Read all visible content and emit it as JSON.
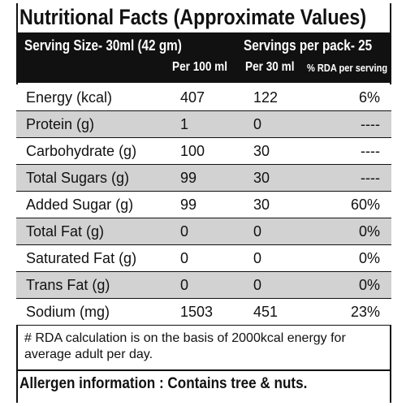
{
  "header": {
    "title": "Nutritional Facts (Approximate Values)",
    "serving_size": "Serving Size-  30ml (42 gm)",
    "servings_per_pack": "Servings per pack- 25"
  },
  "table": {
    "columns": [
      "Per 100 ml",
      "Per 30 ml",
      "% RDA per serving"
    ],
    "rows": [
      [
        "Energy (kcal)",
        "407",
        "122",
        "6%"
      ],
      [
        "Protein (g)",
        "1",
        "0",
        "----"
      ],
      [
        "Carbohydrate (g)",
        "100",
        "30",
        "----"
      ],
      [
        "Total Sugars (g)",
        "99",
        "30",
        "----"
      ],
      [
        "Added Sugar (g)",
        "99",
        "30",
        "60%"
      ],
      [
        "Total Fat (g)",
        "0",
        "0",
        "0%"
      ],
      [
        "Saturated Fat (g)",
        "0",
        "0",
        "0%"
      ],
      [
        "Trans Fat (g)",
        "0",
        "0",
        "0%"
      ],
      [
        "Sodium (mg)",
        "1503",
        "451",
        "23%"
      ]
    ]
  },
  "footnote": "# RDA calculation is on the basis of 2000kcal energy for average adult per day.",
  "allergen": "Allergen information : Contains tree & nuts."
}
